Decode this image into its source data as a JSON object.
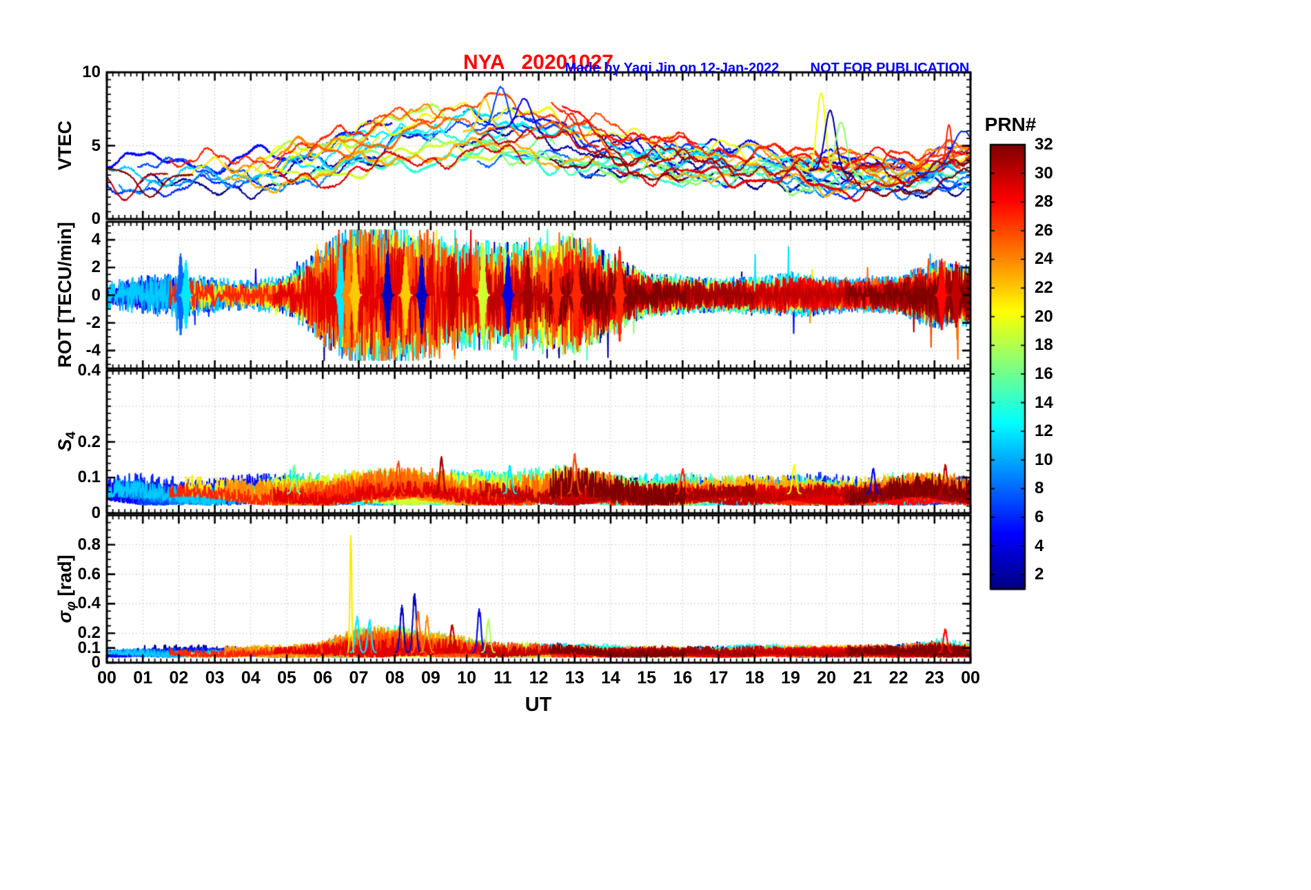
{
  "header": {
    "title": "NYA   20201027",
    "credit": "Made by Yaqi Jin on 12-Jan-2022",
    "notice": "NOT FOR PUBLICATION",
    "title_color": "#ff0000",
    "annotation_color": "#0000ff"
  },
  "chart_data": {
    "type": "line",
    "title": "NYA   20201027",
    "xlabel": "UT",
    "x_range": [
      0,
      24
    ],
    "x_tick_labels": [
      "00",
      "01",
      "02",
      "03",
      "04",
      "05",
      "06",
      "07",
      "08",
      "09",
      "10",
      "11",
      "12",
      "13",
      "14",
      "15",
      "16",
      "17",
      "18",
      "19",
      "20",
      "21",
      "22",
      "23",
      "00"
    ],
    "seed": 42,
    "colors": {
      "axis": "#000000",
      "grid": "#c9c9c9",
      "background": "#ffffff"
    },
    "colorbar": {
      "label": "PRN#",
      "min": 1,
      "max": 32,
      "ticks": [
        2,
        4,
        6,
        8,
        10,
        12,
        14,
        16,
        18,
        20,
        22,
        24,
        26,
        28,
        30,
        32
      ],
      "colormap": "jet"
    },
    "env_hours": [
      0,
      1,
      2,
      3,
      4,
      5,
      6,
      7,
      8,
      9,
      10,
      11,
      12,
      13,
      14,
      15,
      16,
      17,
      18,
      19,
      20,
      21,
      22,
      23,
      24
    ],
    "panels": [
      {
        "id": "vtec",
        "ylabel": "VTEC",
        "ylabel_sub": "",
        "ylabel_rest": "",
        "ylim": [
          0,
          10
        ],
        "yticks": [
          {
            "v": 0,
            "t": "0"
          },
          {
            "v": 5,
            "t": "5"
          },
          {
            "v": 10,
            "t": "10"
          }
        ],
        "y_minor_step": 0.5,
        "grid_y": [
          5
        ],
        "style": "wander",
        "mean": [
          3.4,
          3.2,
          3.0,
          3.0,
          3.2,
          3.6,
          3.9,
          4.8,
          5.4,
          5.8,
          6.0,
          6.2,
          5.8,
          5.2,
          4.8,
          4.3,
          4.0,
          3.9,
          3.8,
          3.5,
          3.2,
          3.0,
          3.0,
          3.2,
          3.6
        ],
        "spread": [
          1.1,
          1.1,
          1.0,
          1.0,
          1.0,
          1.1,
          1.3,
          1.5,
          1.6,
          1.7,
          1.8,
          1.8,
          1.7,
          1.6,
          1.4,
          1.2,
          1.1,
          1.0,
          1.0,
          1.0,
          1.0,
          1.0,
          1.0,
          1.1,
          1.2
        ],
        "events": [
          {
            "x": 0.5,
            "peak": 1.3,
            "prn": 30,
            "w": 0.3
          },
          {
            "x": 1.2,
            "peak": 1.5,
            "prn": 32,
            "w": 0.3
          },
          {
            "x": 10.5,
            "peak": 8.2,
            "prn": 22,
            "w": 0.15
          },
          {
            "x": 10.95,
            "peak": 9.0,
            "prn": 7,
            "w": 0.18
          },
          {
            "x": 11.6,
            "peak": 8.2,
            "prn": 4,
            "w": 0.2
          },
          {
            "x": 12.9,
            "peak": 7.2,
            "prn": 27,
            "w": 0.2
          },
          {
            "x": 19.85,
            "peak": 8.6,
            "prn": 20,
            "w": 0.12
          },
          {
            "x": 20.1,
            "peak": 7.4,
            "prn": 2,
            "w": 0.15
          },
          {
            "x": 20.4,
            "peak": 6.6,
            "prn": 17,
            "w": 0.15
          },
          {
            "x": 23.4,
            "peak": 6.4,
            "prn": 27,
            "w": 0.08
          },
          {
            "x": 23.8,
            "peak": 6.0,
            "prn": 6,
            "w": 0.3
          }
        ]
      },
      {
        "id": "rot",
        "ylabel": "ROT [TECU/min]",
        "ylabel_sub": "",
        "ylabel_rest": "",
        "ylim": [
          -5.3,
          5.3
        ],
        "yticks": [
          {
            "v": -4,
            "t": "-4"
          },
          {
            "v": -2,
            "t": "-2"
          },
          {
            "v": 0,
            "t": "0"
          },
          {
            "v": 2,
            "t": "2"
          },
          {
            "v": 4,
            "t": "4"
          }
        ],
        "y_minor_step": 0.5,
        "grid_y": [
          -4,
          -2,
          0,
          2,
          4
        ],
        "style": "noise",
        "amp": [
          0.35,
          0.5,
          0.6,
          0.45,
          0.4,
          0.5,
          1.3,
          2.0,
          1.9,
          1.7,
          1.5,
          1.4,
          1.5,
          1.7,
          1.1,
          0.6,
          0.5,
          0.45,
          0.5,
          0.6,
          0.5,
          0.45,
          0.5,
          0.9,
          0.8
        ],
        "events": [
          {
            "x": 2.05,
            "peak": 3.1,
            "prn": 8
          },
          {
            "x": 2.2,
            "peak": 2.6,
            "prn": 12
          },
          {
            "x": 6.5,
            "peak": 3.9,
            "prn": 12
          },
          {
            "x": 6.7,
            "peak": 4.1,
            "prn": 24
          },
          {
            "x": 6.9,
            "peak": 3.5,
            "prn": 22
          },
          {
            "x": 7.8,
            "peak": 3.3,
            "prn": 3
          },
          {
            "x": 8.3,
            "peak": 3.1,
            "prn": 22
          },
          {
            "x": 8.75,
            "peak": 3.0,
            "prn": 3
          },
          {
            "x": 9.6,
            "peak": 2.8,
            "prn": 30
          },
          {
            "x": 10.45,
            "peak": 3.9,
            "prn": 19
          },
          {
            "x": 11.15,
            "peak": 3.0,
            "prn": 4
          },
          {
            "x": 11.7,
            "peak": 3.0,
            "prn": 31
          },
          {
            "x": 12.5,
            "peak": 2.8,
            "prn": 27
          },
          {
            "x": 13.05,
            "peak": 3.2,
            "prn": 27
          },
          {
            "x": 14.25,
            "peak": 3.6,
            "prn": 27
          },
          {
            "x": 23.2,
            "peak": 2.7,
            "prn": 28
          },
          {
            "x": 23.6,
            "peak": 2.5,
            "prn": 30
          }
        ]
      },
      {
        "id": "s4",
        "ylabel": "S",
        "ylabel_sub": "4",
        "ylabel_rest": "",
        "ylim": [
          0,
          0.4
        ],
        "yticks": [
          {
            "v": 0,
            "t": "0"
          },
          {
            "v": 0.1,
            "t": "0.1"
          },
          {
            "v": 0.2,
            "t": "0.2"
          },
          {
            "v": 0.4,
            "t": "0.4"
          }
        ],
        "y_minor_step": 0.02,
        "grid_y": [
          0.1,
          0.2,
          0.3
        ],
        "style": "positive",
        "base": 0.035,
        "amp": [
          0.045,
          0.05,
          0.045,
          0.045,
          0.05,
          0.06,
          0.05,
          0.06,
          0.065,
          0.065,
          0.06,
          0.055,
          0.06,
          0.07,
          0.055,
          0.05,
          0.05,
          0.045,
          0.05,
          0.055,
          0.05,
          0.045,
          0.05,
          0.055,
          0.05
        ],
        "events": [
          {
            "x": 5.2,
            "peak": 0.13,
            "prn": 16
          },
          {
            "x": 8.1,
            "peak": 0.14,
            "prn": 26
          },
          {
            "x": 9.3,
            "peak": 0.15,
            "prn": 31
          },
          {
            "x": 11.2,
            "peak": 0.13,
            "prn": 12
          },
          {
            "x": 13.0,
            "peak": 0.16,
            "prn": 26
          },
          {
            "x": 16.0,
            "peak": 0.12,
            "prn": 27
          },
          {
            "x": 19.1,
            "peak": 0.13,
            "prn": 20
          },
          {
            "x": 21.3,
            "peak": 0.12,
            "prn": 5
          },
          {
            "x": 23.3,
            "peak": 0.13,
            "prn": 30
          }
        ]
      },
      {
        "id": "sigma-phi",
        "ylabel": "σ",
        "ylabel_sub": "φ",
        "ylabel_rest": " [rad]",
        "ylim": [
          0,
          1.0
        ],
        "yticks": [
          {
            "v": 0,
            "t": "0"
          },
          {
            "v": 0.1,
            "t": "0.1"
          },
          {
            "v": 0.2,
            "t": "0.2"
          },
          {
            "v": 0.4,
            "t": "0.4"
          },
          {
            "v": 0.6,
            "t": "0.6"
          },
          {
            "v": 0.8,
            "t": "0.8"
          }
        ],
        "y_minor_step": 0.05,
        "grid_y": [
          0.2,
          0.4,
          0.6,
          0.8
        ],
        "style": "positive",
        "base": 0.05,
        "amp": [
          0.05,
          0.06,
          0.05,
          0.045,
          0.05,
          0.05,
          0.08,
          0.14,
          0.15,
          0.12,
          0.1,
          0.07,
          0.06,
          0.055,
          0.05,
          0.045,
          0.045,
          0.045,
          0.05,
          0.05,
          0.05,
          0.05,
          0.05,
          0.08,
          0.06
        ],
        "events": [
          {
            "x": 6.78,
            "peak": 0.83,
            "prn": 21,
            "w": 0.025
          },
          {
            "x": 6.95,
            "peak": 0.3,
            "prn": 12
          },
          {
            "x": 7.3,
            "peak": 0.28,
            "prn": 12
          },
          {
            "x": 8.2,
            "peak": 0.37,
            "prn": 3
          },
          {
            "x": 8.55,
            "peak": 0.45,
            "prn": 3
          },
          {
            "x": 8.65,
            "peak": 0.33,
            "prn": 25
          },
          {
            "x": 8.9,
            "peak": 0.3,
            "prn": 24
          },
          {
            "x": 9.6,
            "peak": 0.25,
            "prn": 30
          },
          {
            "x": 10.35,
            "peak": 0.35,
            "prn": 4
          },
          {
            "x": 10.6,
            "peak": 0.28,
            "prn": 18
          },
          {
            "x": 23.3,
            "peak": 0.22,
            "prn": 28
          }
        ]
      }
    ]
  }
}
